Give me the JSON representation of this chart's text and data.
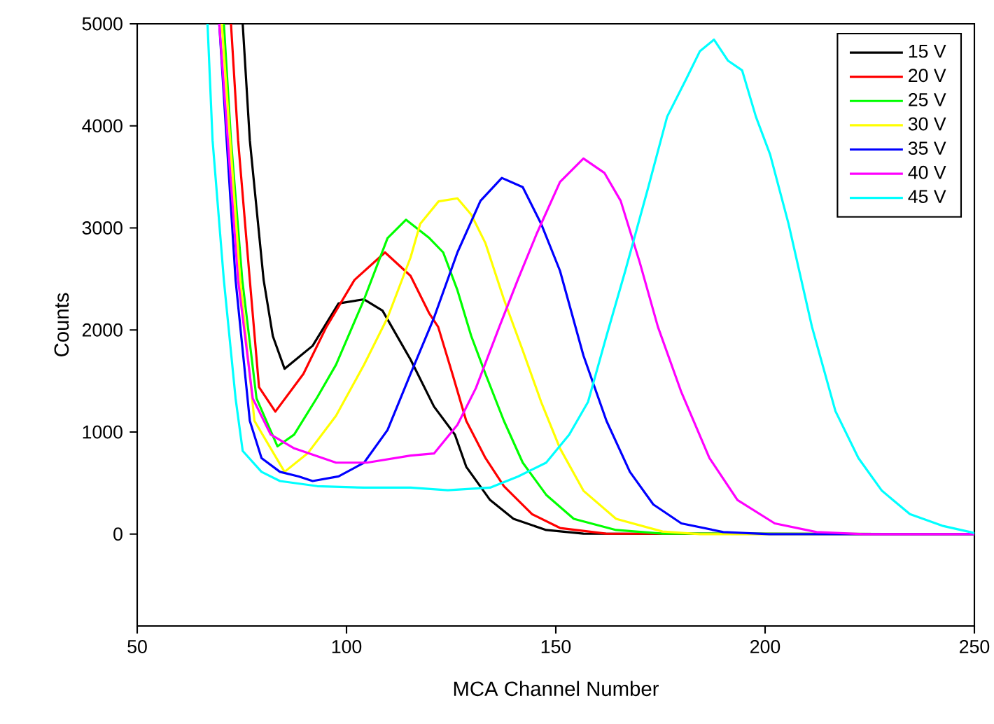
{
  "chart_data": {
    "type": "line",
    "xlabel": "MCA Channel Number",
    "ylabel": "Counts",
    "xlim": [
      50,
      250
    ],
    "ylim": [
      -900,
      5000
    ],
    "xticks": [
      50,
      100,
      150,
      200,
      250
    ],
    "yticks": [
      0,
      1000,
      2000,
      3000,
      4000,
      5000
    ],
    "grid": false,
    "legend": "top right",
    "marker": "none",
    "line_style": "solid",
    "series": [
      {
        "name": "15 V",
        "color": "#000000",
        "x": [
          75.2,
          76.9,
          80.2,
          82.4,
          85.2,
          91.9,
          98.1,
          104.2,
          108.6,
          115.3,
          120.9,
          125.9,
          128.6,
          134.3,
          139.9,
          147.7,
          156.6,
          250
        ],
        "values": [
          5000,
          3860,
          2490,
          1940,
          1620,
          1845,
          2260,
          2300,
          2190,
          1710,
          1250,
          975,
          660,
          334,
          150,
          40,
          5,
          0
        ]
      },
      {
        "name": "20 V",
        "color": "#ff0000",
        "x": [
          72.4,
          74.1,
          76.9,
          79.1,
          83.0,
          89.7,
          95.2,
          101.9,
          109.2,
          115.3,
          119.8,
          121.9,
          125.3,
          128.6,
          133.2,
          137.6,
          144.3,
          151,
          162,
          250
        ],
        "values": [
          5000,
          3860,
          2490,
          1440,
          1200,
          1570,
          2030,
          2490,
          2760,
          2530,
          2160,
          2030,
          1570,
          1110,
          745,
          470,
          196,
          60,
          5,
          0
        ]
      },
      {
        "name": "25 V",
        "color": "#00ff00",
        "x": [
          70.7,
          72.4,
          75.1,
          78.5,
          83.5,
          87.5,
          93.0,
          97.5,
          104.2,
          109.8,
          114.2,
          119.8,
          123.1,
          126.5,
          129.8,
          133.2,
          137.6,
          142.1,
          147.7,
          154.3,
          164.4,
          175.5,
          250
        ],
        "values": [
          5000,
          3860,
          2490,
          1330,
          860,
          975,
          1340,
          1660,
          2300,
          2900,
          3080,
          2900,
          2760,
          2390,
          1940,
          1570,
          1110,
          700,
          385,
          150,
          40,
          5,
          0
        ]
      },
      {
        "name": "30 V",
        "color": "#ffff00",
        "x": [
          70.2,
          74.6,
          78,
          85.2,
          90.8,
          97.5,
          104.2,
          109.8,
          115.3,
          117.6,
          122,
          126.5,
          129.8,
          133.2,
          137.6,
          142.1,
          146.5,
          151,
          156.6,
          164.4,
          175.5,
          184.4,
          250
        ],
        "values": [
          5000,
          2490,
          1110,
          610,
          795,
          1160,
          1660,
          2120,
          2710,
          3040,
          3260,
          3290,
          3130,
          2850,
          2300,
          1800,
          1295,
          840,
          425,
          150,
          25,
          0,
          0
        ]
      },
      {
        "name": "35 V",
        "color": "#0000ff",
        "x": [
          69.6,
          73.5,
          76.9,
          79.7,
          84.1,
          88.6,
          91.9,
          98.1,
          104.2,
          109.8,
          115.3,
          120.9,
          126.5,
          132.0,
          137.1,
          142.1,
          146.5,
          151,
          156.6,
          162.1,
          167.7,
          173.3,
          180,
          190,
          201,
          250
        ],
        "values": [
          5000,
          2490,
          1110,
          745,
          610,
          565,
          520,
          565,
          700,
          1020,
          1570,
          2120,
          2760,
          3265,
          3490,
          3400,
          3040,
          2580,
          1750,
          1110,
          610,
          290,
          105,
          20,
          0,
          0
        ]
      },
      {
        "name": "40 V",
        "color": "#ff00ff",
        "x": [
          69.6,
          74.1,
          77.6,
          81.9,
          87.5,
          97.5,
          104.9,
          115.3,
          120.9,
          126.5,
          130.9,
          136.5,
          140.9,
          145.4,
          151,
          156.6,
          161.6,
          165.5,
          170,
          174.4,
          180,
          186.7,
          193.4,
          202.3,
          212.3,
          223.5,
          250
        ],
        "values": [
          5000,
          2490,
          1330,
          975,
          840,
          700,
          700,
          770,
          790,
          1070,
          1430,
          2030,
          2490,
          2940,
          3450,
          3680,
          3540,
          3265,
          2670,
          2030,
          1390,
          745,
          334,
          105,
          20,
          0,
          0
        ]
      },
      {
        "name": "45 V",
        "color": "#00ffff",
        "x": [
          66.8,
          68.0,
          70.7,
          73.5,
          75.2,
          79.7,
          84.1,
          93.0,
          104.2,
          115.3,
          124.2,
          134.3,
          141,
          147.7,
          153.2,
          157.7,
          162.1,
          166.6,
          172.1,
          176.6,
          181.1,
          184.4,
          187.8,
          191.1,
          194.5,
          197.8,
          201.2,
          205.6,
          211.2,
          216.8,
          222.3,
          227.9,
          234.6,
          242.3,
          249,
          250
        ],
        "values": [
          5000,
          3860,
          2490,
          1330,
          815,
          610,
          520,
          470,
          455,
          455,
          430,
          455,
          565,
          700,
          975,
          1295,
          1940,
          2580,
          3400,
          4090,
          4455,
          4730,
          4845,
          4640,
          4545,
          4090,
          3720,
          3040,
          2030,
          1205,
          745,
          425,
          196,
          82,
          20,
          10
        ]
      }
    ]
  }
}
